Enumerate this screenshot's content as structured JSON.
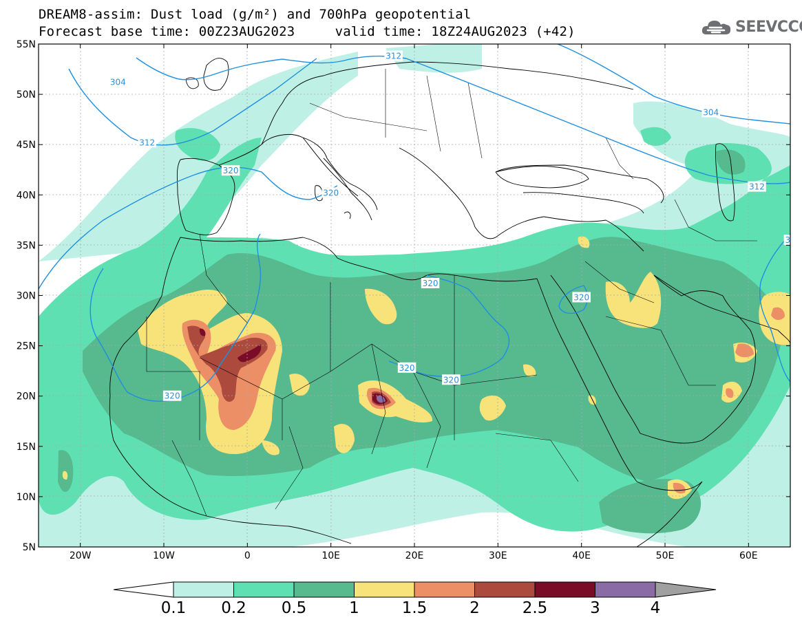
{
  "title": {
    "line1": "DREAM8-assim: Dust load (g/m²) and 700hPa geopotential",
    "line2": "Forecast base time: 00Z23AUG2023     valid time: 18Z24AUG2023 (+42)"
  },
  "logo": {
    "text": "SEEVCCC",
    "icon": "cloud-logo-icon"
  },
  "axes": {
    "lat_labels": [
      "55N",
      "50N",
      "45N",
      "40N",
      "35N",
      "30N",
      "25N",
      "20N",
      "15N",
      "10N",
      "5N"
    ],
    "lon_labels": [
      "20W",
      "10W",
      "0",
      "10E",
      "20E",
      "30E",
      "40E",
      "50E",
      "60E"
    ]
  },
  "contours": {
    "labels": [
      {
        "text": "304",
        "lon": -15.5,
        "lat": 51.2
      },
      {
        "text": "312",
        "lon": 17.5,
        "lat": 53.8
      },
      {
        "text": "304",
        "lon": 55.5,
        "lat": 48.2
      },
      {
        "text": "312",
        "lon": -12,
        "lat": 45.2
      },
      {
        "text": "320",
        "lon": -2,
        "lat": 42.4
      },
      {
        "text": "320",
        "lon": 10,
        "lat": 40.2
      },
      {
        "text": "312",
        "lon": 61,
        "lat": 40.8
      },
      {
        "text": "3",
        "lon": 64.7,
        "lat": 35.5
      },
      {
        "text": "320",
        "lon": 21.9,
        "lat": 31.2
      },
      {
        "text": "320",
        "lon": 40,
        "lat": 29.8
      },
      {
        "text": "320",
        "lon": 19.1,
        "lat": 22.8
      },
      {
        "text": "320",
        "lon": 24.4,
        "lat": 21.6
      },
      {
        "text": "320",
        "lon": -9,
        "lat": 20
      }
    ]
  },
  "colorbar": {
    "labels": [
      "0.1",
      "0.2",
      "0.5",
      "1",
      "1.5",
      "2",
      "2.5",
      "3",
      "4"
    ],
    "colors": [
      "#bff0e6",
      "#5fe0b2",
      "#57b98e",
      "#f8e27a",
      "#ec8f66",
      "#ad4a3e",
      "#7b0c27",
      "#8a6ba6"
    ],
    "under_color": "#ffffff",
    "over_color": "#a0a0a0"
  }
}
